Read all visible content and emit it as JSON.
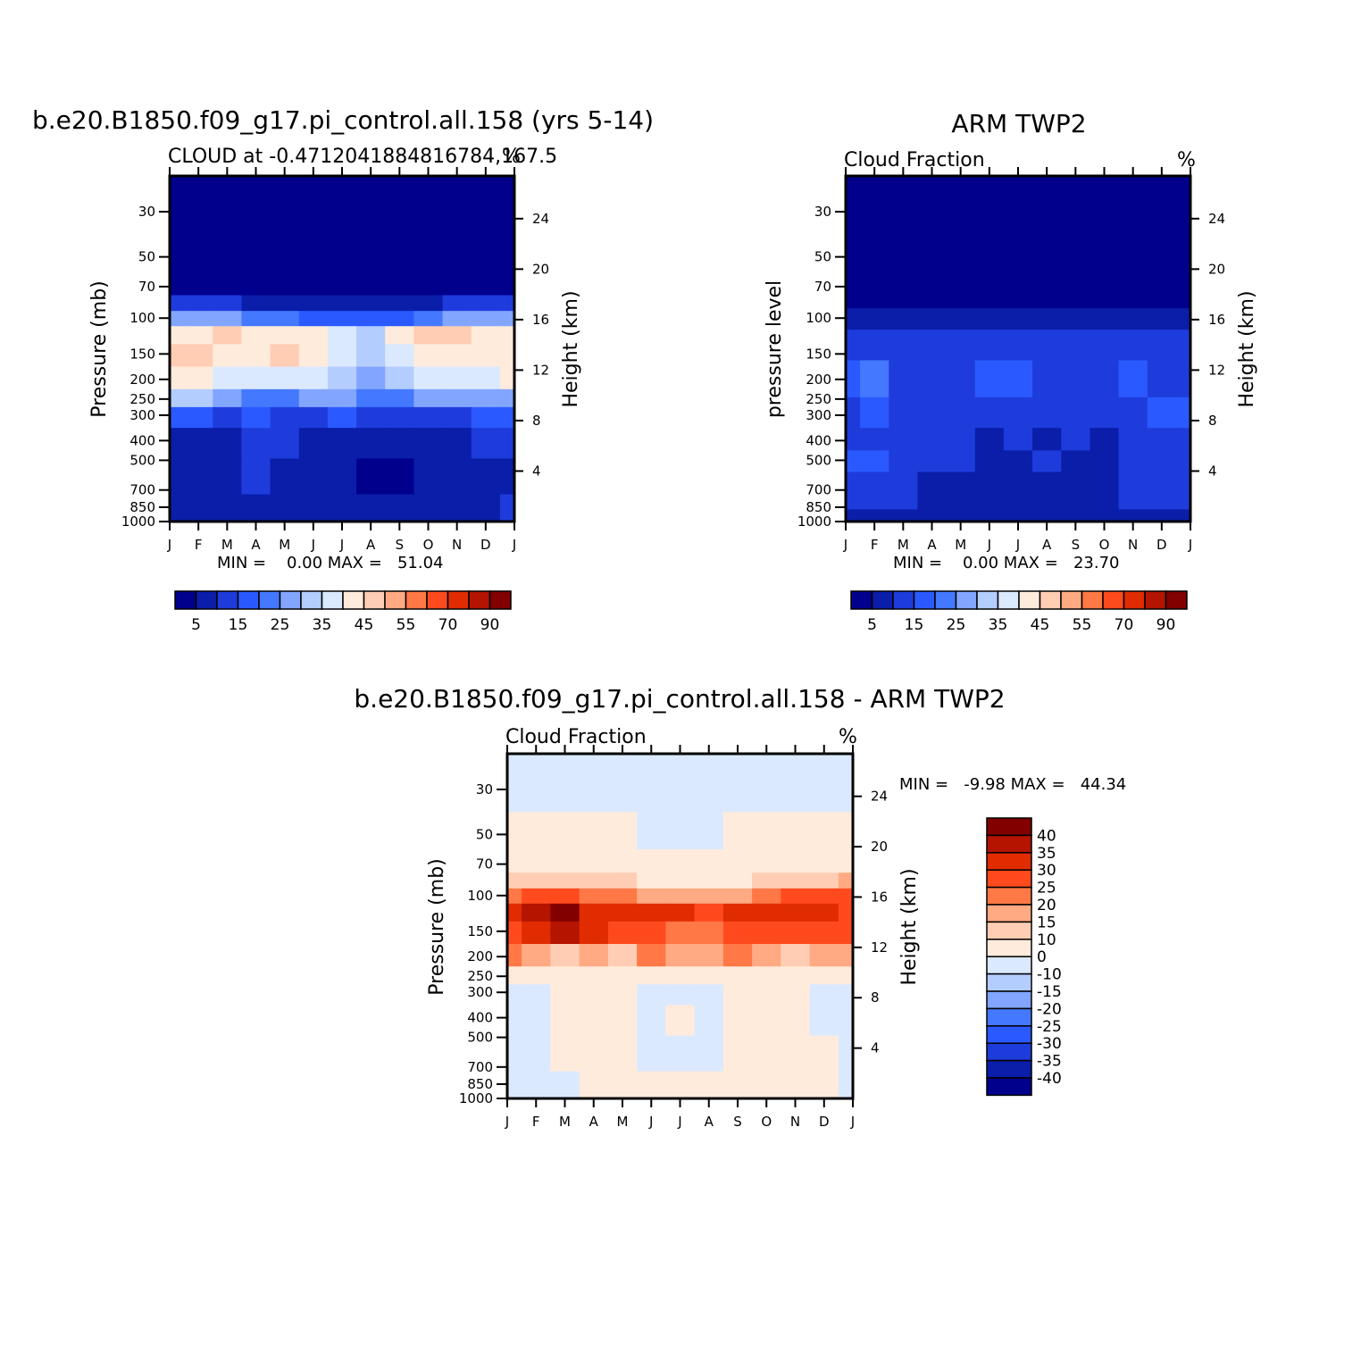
{
  "palette": {
    "cloud": [
      "#00008c",
      "#0a1eaa",
      "#1e3cdc",
      "#2a5aff",
      "#4478ff",
      "#82a5ff",
      "#b4cdff",
      "#dbe9ff",
      "#ffebdb",
      "#ffcdb4",
      "#ffaa82",
      "#ff7846",
      "#ff4a1e",
      "#e02c00",
      "#b41400",
      "#820000"
    ],
    "diff": [
      "#00008c",
      "#0a1eaa",
      "#1e3cdc",
      "#2a5aff",
      "#4478ff",
      "#82a5ff",
      "#b4cdff",
      "#dbe9ff",
      "#ffebdb",
      "#ffcdb4",
      "#ffaa82",
      "#ff7846",
      "#ff4a1e",
      "#e02c00",
      "#b41400",
      "#820000"
    ]
  },
  "panels": {
    "model": {
      "title": "b.e20.B1850.f09_g17.pi_control.all.158 (yrs 5-14)",
      "subtitle_left": "CLOUD at -0.4712041884816784,167.5",
      "subtitle_right": "%",
      "ylabel": "Pressure (mb)",
      "y2label": "Height (km)",
      "min_max": "MIN =    0.00 MAX =   51.04",
      "legend_labels": [
        "5",
        "15",
        "25",
        "35",
        "45",
        "55",
        "70",
        "90"
      ]
    },
    "obs": {
      "title": "ARM TWP2",
      "subtitle_left": "Cloud Fraction",
      "subtitle_right": "%",
      "ylabel": "pressure level",
      "y2label": "Height (km)",
      "min_max": "MIN =    0.00 MAX =   23.70",
      "legend_labels": [
        "5",
        "15",
        "25",
        "35",
        "45",
        "55",
        "70",
        "90"
      ]
    },
    "diff": {
      "title": "b.e20.B1850.f09_g17.pi_control.all.158 - ARM TWP2",
      "subtitle_left": "Cloud Fraction",
      "subtitle_right": "%",
      "ylabel": "Pressure (mb)",
      "y2label": "Height (km)",
      "min_max": "MIN =   -9.98 MAX =   44.34",
      "legend_labels": [
        "40",
        "35",
        "30",
        "25",
        "20",
        "15",
        "10",
        "0",
        "-10",
        "-15",
        "-20",
        "-25",
        "-30",
        "-35",
        "-40"
      ]
    }
  },
  "chart_data": [
    {
      "type": "heatmap",
      "title": "b.e20.B1850.f09_g17.pi_control.all.158 (yrs 5-14)",
      "x": [
        "J",
        "F",
        "M",
        "A",
        "M",
        "J",
        "J",
        "A",
        "S",
        "O",
        "N",
        "D",
        "J"
      ],
      "y_pressure_ticks": [
        30,
        50,
        70,
        100,
        150,
        200,
        250,
        300,
        400,
        500,
        700,
        850,
        1000
      ],
      "y2_height_ticks": [
        24,
        20,
        16,
        12,
        8,
        4
      ],
      "ylim": [
        1000,
        20
      ],
      "levels": [
        5,
        10,
        15,
        20,
        25,
        30,
        35,
        40,
        45,
        50,
        55,
        60,
        70,
        80,
        90
      ],
      "pressure": [
        30,
        70,
        85,
        100,
        120,
        150,
        200,
        250,
        300,
        400,
        600,
        900
      ],
      "values": [
        [
          0,
          0,
          0,
          0,
          0,
          0,
          0,
          0,
          0,
          0,
          0,
          0,
          0
        ],
        [
          3,
          3,
          2,
          2,
          2,
          1,
          1,
          1,
          1,
          1,
          2,
          3,
          3
        ],
        [
          13,
          12,
          10,
          9,
          7,
          6,
          6,
          6,
          7,
          9,
          10,
          12,
          13
        ],
        [
          28,
          27,
          25,
          22,
          20,
          17,
          15,
          15,
          17,
          22,
          27,
          28,
          28
        ],
        [
          43,
          44,
          45,
          43,
          41,
          40,
          36,
          33,
          40,
          45,
          45,
          44,
          43
        ],
        [
          45,
          47,
          43,
          42,
          45,
          43,
          37,
          30,
          39,
          44,
          42,
          41,
          44
        ],
        [
          42,
          40,
          37,
          35,
          37,
          35,
          32,
          27,
          32,
          37,
          36,
          35,
          40
        ],
        [
          33,
          31,
          25,
          24,
          24,
          26,
          25,
          23,
          24,
          25,
          25,
          25,
          26
        ],
        [
          15,
          15,
          12,
          15,
          14,
          14,
          15,
          14,
          14,
          14,
          14,
          15,
          15
        ],
        [
          9,
          5,
          9,
          10,
          10,
          6,
          6,
          6,
          6,
          5,
          6,
          10,
          10
        ],
        [
          8,
          9,
          9,
          10,
          9,
          8,
          6,
          4,
          4,
          6,
          7,
          8,
          8
        ],
        [
          8,
          9,
          9,
          9,
          9,
          8,
          8,
          8,
          9,
          9,
          9,
          9,
          10
        ]
      ],
      "min": 0.0,
      "max": 51.04
    },
    {
      "type": "heatmap",
      "title": "ARM TWP2",
      "x": [
        "J",
        "F",
        "M",
        "A",
        "M",
        "J",
        "J",
        "A",
        "S",
        "O",
        "N",
        "D",
        "J"
      ],
      "y_pressure_ticks": [
        30,
        50,
        70,
        100,
        150,
        200,
        250,
        300,
        400,
        500,
        700,
        850,
        1000
      ],
      "y2_height_ticks": [
        24,
        20,
        16,
        12,
        8,
        4
      ],
      "ylim": [
        1000,
        20
      ],
      "levels": [
        5,
        10,
        15,
        20,
        25,
        30,
        35,
        40,
        45,
        50,
        55,
        60,
        70,
        80,
        90
      ],
      "pressure": [
        30,
        80,
        100,
        130,
        200,
        300,
        400,
        500,
        650,
        800,
        950
      ],
      "values": [
        [
          0,
          0,
          0,
          0,
          0,
          0,
          0,
          0,
          0,
          0,
          0,
          0,
          0
        ],
        [
          4,
          3,
          2,
          1,
          1,
          1,
          1,
          1,
          1,
          1,
          2,
          3,
          4
        ],
        [
          9,
          8,
          7,
          6,
          5,
          5,
          5,
          6,
          5,
          6,
          7,
          8,
          9
        ],
        [
          13,
          12,
          11,
          11,
          11,
          11,
          11,
          12,
          11,
          11,
          12,
          12,
          13
        ],
        [
          17,
          20,
          14,
          13,
          14,
          16,
          16,
          13,
          14,
          13,
          16,
          14,
          14
        ],
        [
          14,
          17,
          14,
          13,
          12,
          14,
          14,
          13,
          12,
          12,
          14,
          15,
          15
        ],
        [
          14,
          14,
          12,
          13,
          10,
          9,
          10,
          9,
          10,
          8,
          12,
          13,
          13
        ],
        [
          15,
          15,
          11,
          12,
          10,
          9,
          9,
          10,
          9,
          8,
          11,
          12,
          12
        ],
        [
          12,
          11,
          10,
          9,
          8,
          9,
          8,
          9,
          8,
          8,
          10,
          10,
          11
        ],
        [
          11,
          10,
          10,
          9,
          9,
          9,
          9,
          9,
          9,
          9,
          10,
          10,
          10
        ],
        [
          5,
          5,
          5,
          5,
          5,
          5,
          5,
          5,
          5,
          5,
          5,
          5,
          5
        ]
      ],
      "min": 0.0,
      "max": 23.7
    },
    {
      "type": "heatmap",
      "title": "b.e20.B1850.f09_g17.pi_control.all.158 - ARM TWP2",
      "x": [
        "J",
        "F",
        "M",
        "A",
        "M",
        "J",
        "J",
        "A",
        "S",
        "O",
        "N",
        "D",
        "J"
      ],
      "y_pressure_ticks": [
        30,
        50,
        70,
        100,
        150,
        200,
        250,
        300,
        400,
        500,
        700,
        850,
        1000
      ],
      "y2_height_ticks": [
        24,
        20,
        16,
        12,
        8,
        4
      ],
      "ylim": [
        1000,
        20
      ],
      "levels": [
        -40,
        -35,
        -30,
        -25,
        -20,
        -15,
        -10,
        0,
        10,
        15,
        20,
        25,
        30,
        35,
        40
      ],
      "pressure": [
        30,
        50,
        70,
        85,
        100,
        120,
        150,
        200,
        250,
        300,
        400,
        600,
        900
      ],
      "values": [
        [
          -1,
          -1,
          -1,
          -1,
          -1,
          -1,
          -1,
          -1,
          -1,
          -1,
          -1,
          -1,
          -1
        ],
        [
          2,
          2,
          2,
          2,
          2,
          -1,
          -1,
          -1,
          2,
          2,
          2,
          2,
          2
        ],
        [
          4,
          4,
          4,
          4,
          4,
          3,
          3,
          3,
          4,
          4,
          4,
          4,
          4
        ],
        [
          14,
          13,
          12,
          11,
          10,
          9,
          8,
          8,
          9,
          11,
          13,
          14,
          16
        ],
        [
          22,
          26,
          25,
          24,
          21,
          18,
          16,
          16,
          18,
          22,
          25,
          26,
          28
        ],
        [
          30,
          36,
          41,
          32,
          30,
          30,
          32,
          29,
          33,
          34,
          33,
          32,
          29
        ],
        [
          26,
          31,
          36,
          30,
          28,
          27,
          24,
          24,
          28,
          27,
          27,
          26,
          26
        ],
        [
          20,
          18,
          13,
          18,
          12,
          20,
          15,
          17,
          20,
          15,
          12,
          15,
          17
        ],
        [
          8,
          7,
          6,
          8,
          4,
          7,
          8,
          6,
          5,
          6,
          6,
          7,
          6
        ],
        [
          -2,
          -2,
          2,
          3,
          2,
          -2,
          -2,
          -2,
          3,
          3,
          2,
          -2,
          -2
        ],
        [
          -2,
          -2,
          2,
          3,
          3,
          -2,
          2,
          -2,
          2,
          2,
          2,
          -2,
          -2
        ],
        [
          -2,
          -2,
          2,
          2,
          2,
          -2,
          -2,
          -2,
          2,
          2,
          2,
          2,
          -2
        ],
        [
          -2,
          -2,
          -2,
          2,
          2,
          2,
          2,
          2,
          2,
          2,
          2,
          2,
          -2
        ]
      ],
      "min": -9.98,
      "max": 44.34
    }
  ]
}
